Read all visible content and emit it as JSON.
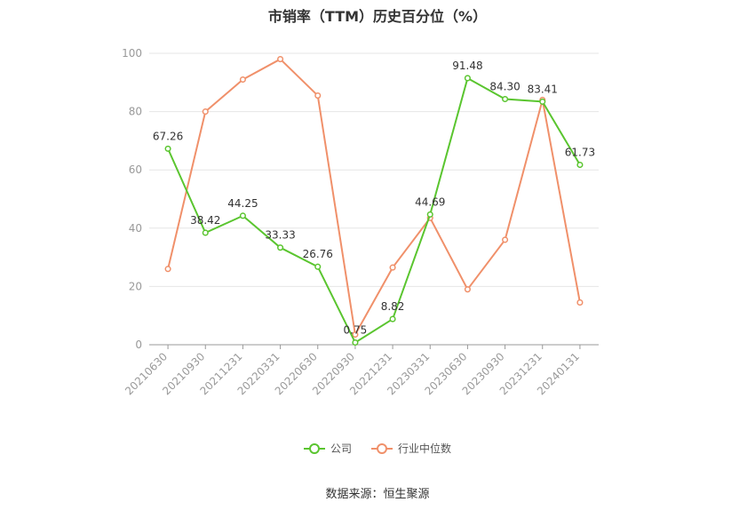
{
  "chart_data": {
    "type": "line",
    "title": "市销率（TTM）历史百分位（%）",
    "categories": [
      "20210630",
      "20210930",
      "20211231",
      "20220331",
      "20220630",
      "20220930",
      "20221231",
      "20230331",
      "20230630",
      "20230930",
      "20231231",
      "20240131"
    ],
    "ylim": [
      0,
      100
    ],
    "yticks": [
      0,
      20,
      40,
      60,
      80,
      100
    ],
    "grid": true,
    "legend_position": "bottom",
    "series": [
      {
        "name": "公司",
        "color": "#5ac52f",
        "show_labels": true,
        "values": [
          67.26,
          38.42,
          44.25,
          33.33,
          26.76,
          0.75,
          8.82,
          44.69,
          91.48,
          84.3,
          83.41,
          61.73
        ]
      },
      {
        "name": "行业中位数",
        "color": "#f0906a",
        "show_labels": false,
        "values": [
          26,
          80,
          91,
          98,
          85.5,
          3.5,
          26.5,
          43.5,
          19,
          36,
          84,
          14.5
        ]
      }
    ]
  },
  "source": "数据来源：恒生聚源"
}
